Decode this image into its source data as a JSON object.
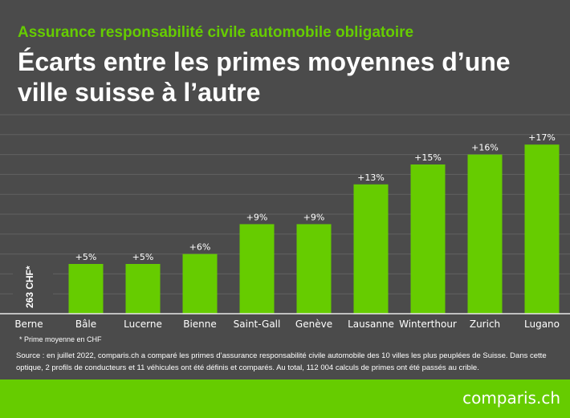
{
  "header": {
    "kicker": "Assurance responsabilité civile automobile obligatoire",
    "title": "Écarts entre les primes moyennes d’une ville suisse à l’autre"
  },
  "chart_data": {
    "type": "bar",
    "categories": [
      "Berne",
      "Bâle",
      "Lucerne",
      "Bienne",
      "Saint-Gall",
      "Genève",
      "Lausanne",
      "Winterthour",
      "Zurich",
      "Lugano"
    ],
    "values": [
      0,
      5,
      5,
      6,
      9,
      9,
      13,
      15,
      16,
      17
    ],
    "data_labels": [
      "",
      "+5%",
      "+5%",
      "+6%",
      "+9%",
      "+9%",
      "+13%",
      "+15%",
      "+16%",
      "+17%"
    ],
    "baseline_label": "263 CHF*",
    "ylim": [
      0,
      20
    ],
    "grid": true,
    "bar_color": "#66cc00"
  },
  "footer": {
    "note": "* Prime moyenne en CHF",
    "source": "Source : en juillet 2022, comparis.ch a comparé les primes d’assurance responsabilité civile automobile des 10 villes les plus peuplées de Suisse. Dans cette optique, 2 profils de conducteurs et 11 véhicules ont été définis et comparés. Au total, 112 004 calculs de primes ont été passés au crible.",
    "logo": "comparis.ch"
  },
  "colors": {
    "background": "#4b4b4b",
    "accent": "#66cc00"
  }
}
